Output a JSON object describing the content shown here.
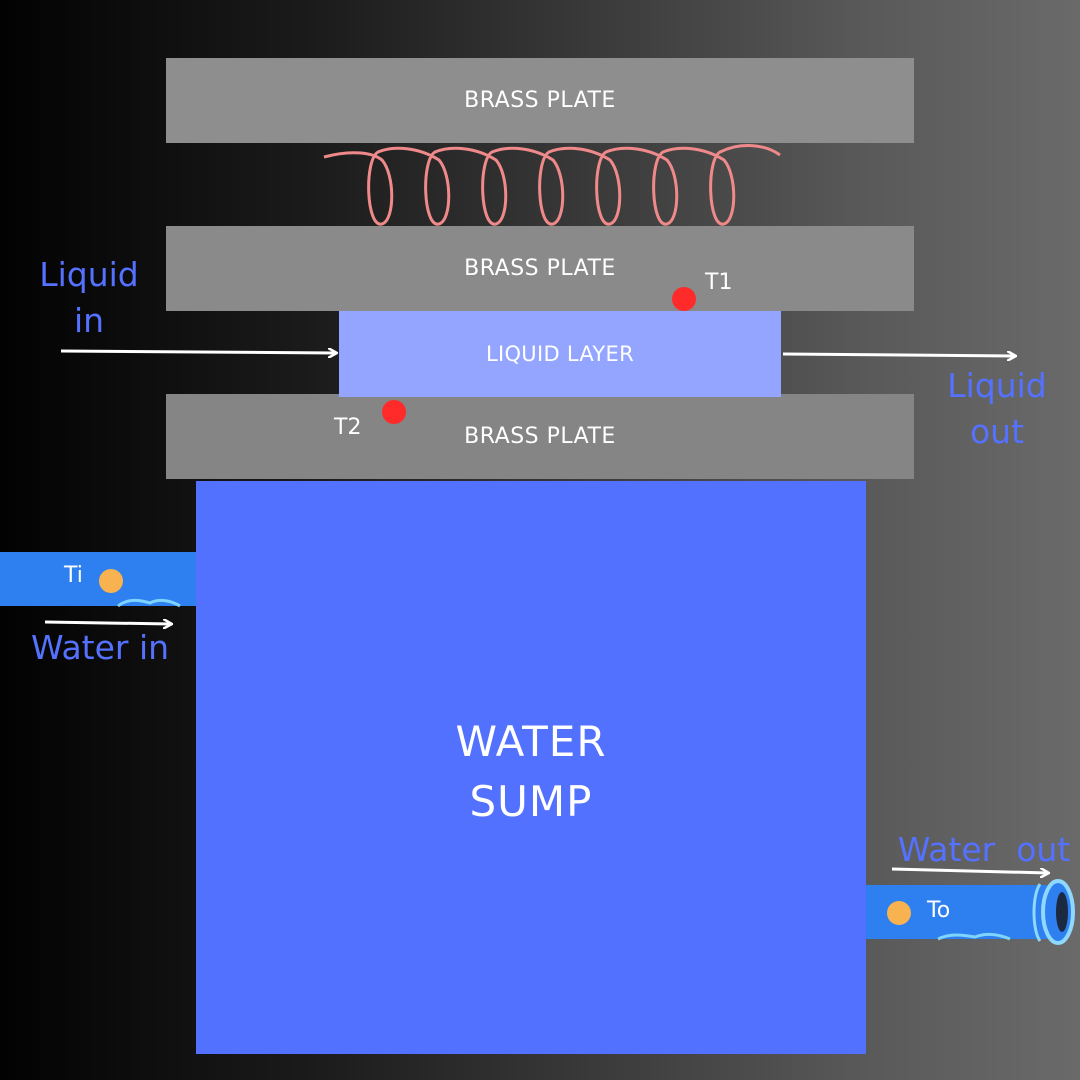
{
  "plates": {
    "top": "BRASS PLATE",
    "middle": "BRASS PLATE",
    "bottom": "BRASS PLATE"
  },
  "liquid_layer": "LIQUID LAYER",
  "sump": {
    "line1": "WATER",
    "line2": "SUMP"
  },
  "labels": {
    "liquid_in": {
      "line1": "Liquid",
      "line2": "in"
    },
    "liquid_out": {
      "line1": "Liquid",
      "line2": "out"
    },
    "water_in": "Water in",
    "water_out": "Water  out"
  },
  "sensors": {
    "t1": "T1",
    "t2": "T2",
    "ti": "Ti",
    "to": "To"
  },
  "colors": {
    "plate": "#8c8c8c",
    "liquid_layer": "#93a5ff",
    "sump": "#5271ff",
    "label_blue": "#5571ff",
    "coil": "#f08a8a",
    "thermocouple_plate": "#ff2a2a",
    "thermocouple_water": "#f8b350",
    "pipe": "#2e7ff0"
  }
}
